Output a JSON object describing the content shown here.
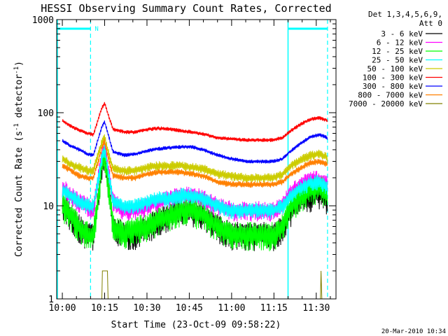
{
  "chart_data": {
    "type": "line",
    "title": "HESSI Observing Summary Count Rates, Corrected",
    "xlabel": "Start Time (23-Oct-09 09:58:22)",
    "ylabel_main": "Corrected Count Rate (s",
    "ylabel_sup1": "-1",
    "ylabel_mid": " detector",
    "ylabel_sup2": "-1",
    "ylabel_end": ")",
    "y_scale": "log",
    "ylim": [
      1,
      1000
    ],
    "xlim_minutes": [
      -2,
      97
    ],
    "x_axis_labels": [
      "10:00",
      "10:15",
      "10:30",
      "10:45",
      "11:00",
      "11:15",
      "11:30"
    ],
    "y_axis_labels": [
      "1",
      "10",
      "100",
      "1000"
    ],
    "timestamp": "20-Mar-2010 10:34",
    "legend": {
      "header1": "Det 1,3,4,5,6,9,",
      "header2": "Att 0",
      "placement": "right of plot"
    },
    "markers": {
      "saa_label": "N",
      "night_start_1": "10:10",
      "night_end_1": "11:20",
      "night_start_2": "11:34",
      "color": "#00ffff"
    },
    "series": [
      {
        "name": "3 - 6 keV",
        "color": "#000000",
        "noise": 0.35,
        "points": [
          [
            0,
            11
          ],
          [
            3,
            8
          ],
          [
            6,
            6
          ],
          [
            9,
            5
          ],
          [
            11,
            5
          ],
          [
            13,
            14
          ],
          [
            14,
            28
          ],
          [
            15,
            38
          ],
          [
            16,
            20
          ],
          [
            18,
            6
          ],
          [
            22,
            5
          ],
          [
            26,
            5
          ],
          [
            30,
            6
          ],
          [
            34,
            7
          ],
          [
            38,
            8
          ],
          [
            42,
            9
          ],
          [
            46,
            9
          ],
          [
            50,
            8
          ],
          [
            55,
            6
          ],
          [
            60,
            5
          ],
          [
            65,
            5
          ],
          [
            70,
            5
          ],
          [
            75,
            5
          ],
          [
            78,
            6
          ],
          [
            81,
            9
          ],
          [
            85,
            12
          ],
          [
            88,
            13
          ],
          [
            91,
            14
          ],
          [
            94,
            12
          ]
        ]
      },
      {
        "name": "6 - 12 keV",
        "color": "#ff00ff",
        "noise": 0.25,
        "points": [
          [
            0,
            16
          ],
          [
            3,
            13
          ],
          [
            6,
            11
          ],
          [
            9,
            10
          ],
          [
            11,
            9
          ],
          [
            13,
            22
          ],
          [
            14,
            33
          ],
          [
            15,
            45
          ],
          [
            16,
            28
          ],
          [
            18,
            11
          ],
          [
            22,
            9
          ],
          [
            26,
            9
          ],
          [
            30,
            10
          ],
          [
            34,
            11
          ],
          [
            38,
            12
          ],
          [
            42,
            13
          ],
          [
            46,
            13
          ],
          [
            50,
            12
          ],
          [
            55,
            10
          ],
          [
            60,
            9
          ],
          [
            65,
            9
          ],
          [
            70,
            9
          ],
          [
            75,
            9
          ],
          [
            78,
            10
          ],
          [
            81,
            14
          ],
          [
            85,
            17
          ],
          [
            88,
            19
          ],
          [
            91,
            19
          ],
          [
            94,
            17
          ]
        ]
      },
      {
        "name": "12 - 25 keV",
        "color": "#00ff00",
        "noise": 0.35,
        "points": [
          [
            0,
            10
          ],
          [
            3,
            8
          ],
          [
            6,
            6
          ],
          [
            9,
            5
          ],
          [
            11,
            5
          ],
          [
            13,
            14
          ],
          [
            14,
            28
          ],
          [
            15,
            36
          ],
          [
            16,
            20
          ],
          [
            18,
            6
          ],
          [
            22,
            5
          ],
          [
            26,
            6
          ],
          [
            30,
            6
          ],
          [
            34,
            7
          ],
          [
            38,
            8
          ],
          [
            42,
            9
          ],
          [
            46,
            9
          ],
          [
            50,
            8
          ],
          [
            55,
            6
          ],
          [
            60,
            5
          ],
          [
            65,
            5
          ],
          [
            70,
            5
          ],
          [
            75,
            5
          ],
          [
            78,
            6
          ],
          [
            81,
            10
          ],
          [
            85,
            13
          ],
          [
            88,
            15
          ],
          [
            91,
            16
          ],
          [
            94,
            14
          ]
        ]
      },
      {
        "name": "25 - 50 keV",
        "color": "#00ffff",
        "noise": 0.2,
        "points": [
          [
            0,
            15
          ],
          [
            3,
            13
          ],
          [
            6,
            11
          ],
          [
            9,
            10
          ],
          [
            11,
            10
          ],
          [
            13,
            22
          ],
          [
            14,
            32
          ],
          [
            15,
            42
          ],
          [
            16,
            26
          ],
          [
            18,
            11
          ],
          [
            22,
            10
          ],
          [
            26,
            10
          ],
          [
            30,
            11
          ],
          [
            34,
            12
          ],
          [
            38,
            12
          ],
          [
            42,
            13
          ],
          [
            46,
            13
          ],
          [
            50,
            12
          ],
          [
            55,
            10
          ],
          [
            60,
            9
          ],
          [
            65,
            9
          ],
          [
            70,
            9
          ],
          [
            75,
            9
          ],
          [
            78,
            10
          ],
          [
            81,
            13
          ],
          [
            85,
            16
          ],
          [
            88,
            18
          ],
          [
            91,
            18
          ],
          [
            94,
            16
          ]
        ]
      },
      {
        "name": "50 - 100 keV",
        "color": "#cccc00",
        "noise": 0.12,
        "points": [
          [
            0,
            32
          ],
          [
            3,
            28
          ],
          [
            6,
            26
          ],
          [
            9,
            24
          ],
          [
            11,
            24
          ],
          [
            13,
            38
          ],
          [
            14,
            48
          ],
          [
            15,
            55
          ],
          [
            16,
            40
          ],
          [
            18,
            25
          ],
          [
            22,
            24
          ],
          [
            26,
            24
          ],
          [
            30,
            26
          ],
          [
            34,
            27
          ],
          [
            38,
            27
          ],
          [
            42,
            27
          ],
          [
            46,
            26
          ],
          [
            50,
            25
          ],
          [
            55,
            22
          ],
          [
            60,
            21
          ],
          [
            65,
            20
          ],
          [
            70,
            20
          ],
          [
            75,
            20
          ],
          [
            78,
            22
          ],
          [
            81,
            27
          ],
          [
            85,
            32
          ],
          [
            88,
            35
          ],
          [
            91,
            36
          ],
          [
            94,
            33
          ]
        ]
      },
      {
        "name": "100 - 300 keV",
        "color": "#ff0000",
        "noise": 0.05,
        "points": [
          [
            0,
            82
          ],
          [
            3,
            72
          ],
          [
            6,
            65
          ],
          [
            9,
            60
          ],
          [
            11,
            58
          ],
          [
            13,
            90
          ],
          [
            14,
            112
          ],
          [
            15,
            128
          ],
          [
            16,
            100
          ],
          [
            18,
            66
          ],
          [
            22,
            62
          ],
          [
            26,
            62
          ],
          [
            30,
            66
          ],
          [
            34,
            68
          ],
          [
            38,
            67
          ],
          [
            42,
            64
          ],
          [
            46,
            62
          ],
          [
            50,
            59
          ],
          [
            55,
            54
          ],
          [
            60,
            52
          ],
          [
            65,
            51
          ],
          [
            70,
            51
          ],
          [
            75,
            51
          ],
          [
            78,
            54
          ],
          [
            81,
            64
          ],
          [
            85,
            77
          ],
          [
            88,
            85
          ],
          [
            91,
            88
          ],
          [
            94,
            83
          ]
        ]
      },
      {
        "name": "300 - 800 keV",
        "color": "#0000ff",
        "noise": 0.05,
        "points": [
          [
            0,
            50
          ],
          [
            3,
            44
          ],
          [
            6,
            40
          ],
          [
            9,
            36
          ],
          [
            11,
            35
          ],
          [
            13,
            56
          ],
          [
            14,
            70
          ],
          [
            15,
            80
          ],
          [
            16,
            62
          ],
          [
            18,
            38
          ],
          [
            22,
            35
          ],
          [
            26,
            36
          ],
          [
            30,
            39
          ],
          [
            34,
            41
          ],
          [
            38,
            42
          ],
          [
            42,
            43
          ],
          [
            46,
            43
          ],
          [
            50,
            40
          ],
          [
            55,
            35
          ],
          [
            60,
            32
          ],
          [
            65,
            30
          ],
          [
            70,
            30
          ],
          [
            75,
            30
          ],
          [
            78,
            32
          ],
          [
            81,
            39
          ],
          [
            85,
            48
          ],
          [
            88,
            55
          ],
          [
            91,
            58
          ],
          [
            94,
            54
          ]
        ]
      },
      {
        "name": "800 - 7000 keV",
        "color": "#ff8000",
        "noise": 0.08,
        "points": [
          [
            0,
            27
          ],
          [
            3,
            24
          ],
          [
            6,
            21
          ],
          [
            9,
            20
          ],
          [
            11,
            20
          ],
          [
            13,
            32
          ],
          [
            14,
            42
          ],
          [
            15,
            50
          ],
          [
            16,
            35
          ],
          [
            18,
            21
          ],
          [
            22,
            20
          ],
          [
            26,
            20
          ],
          [
            30,
            22
          ],
          [
            34,
            23
          ],
          [
            38,
            23
          ],
          [
            42,
            23
          ],
          [
            46,
            22
          ],
          [
            50,
            21
          ],
          [
            55,
            18
          ],
          [
            60,
            17
          ],
          [
            65,
            17
          ],
          [
            70,
            17
          ],
          [
            75,
            17
          ],
          [
            78,
            18
          ],
          [
            81,
            22
          ],
          [
            85,
            26
          ],
          [
            88,
            29
          ],
          [
            91,
            30
          ],
          [
            94,
            28
          ]
        ]
      },
      {
        "name": "7000 - 20000 keV",
        "color": "#808000",
        "noise": 0,
        "points": [
          [
            14,
            1
          ],
          [
            14.2,
            2
          ],
          [
            16,
            2
          ],
          [
            16.2,
            1
          ],
          [
            91.5,
            1
          ],
          [
            91.7,
            2
          ],
          [
            92,
            1
          ]
        ]
      }
    ]
  }
}
